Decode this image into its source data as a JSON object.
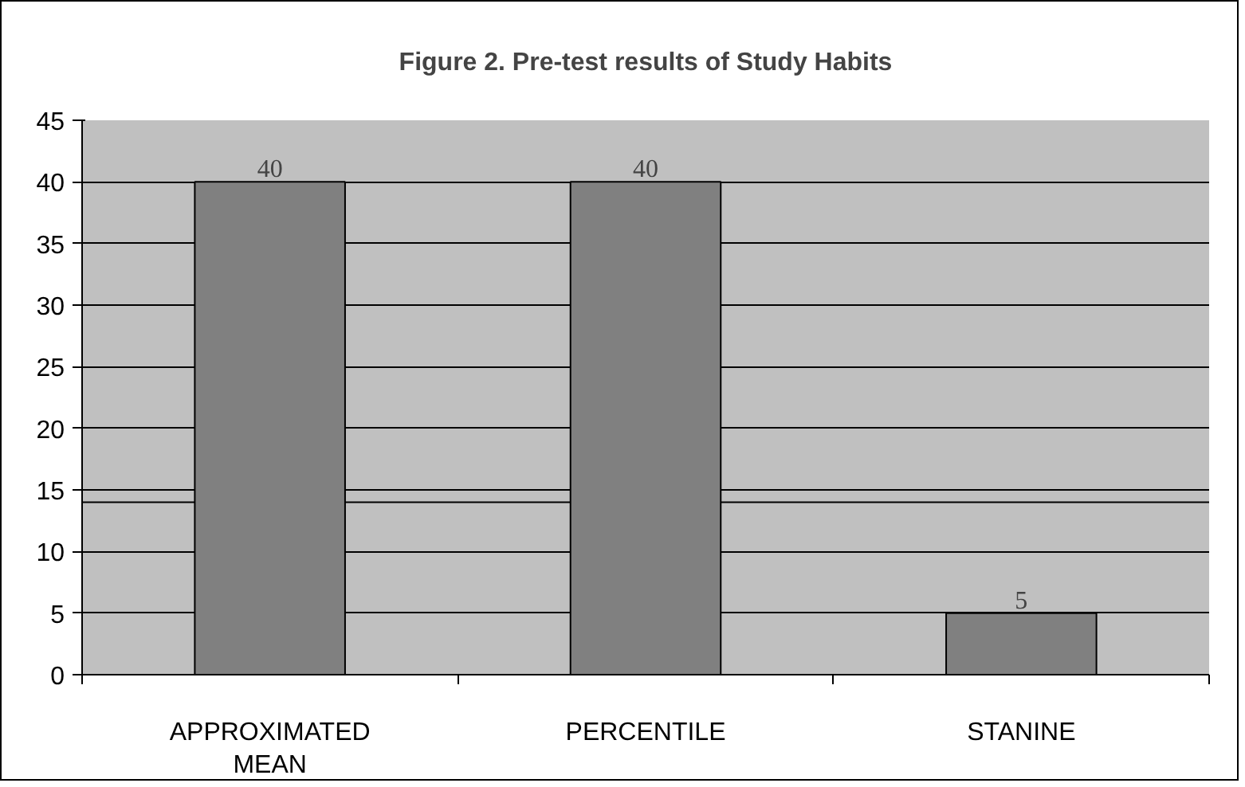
{
  "chart_data": {
    "type": "bar",
    "title": "Figure 2. Pre-test results of Study Habits",
    "categories": [
      "APPROXIMATED MEAN",
      "PERCENTILE",
      "STANINE"
    ],
    "values": [
      40,
      40,
      5
    ],
    "color": "#808080",
    "ylim": [
      0,
      45
    ],
    "yticks": [
      0,
      5,
      10,
      15,
      20,
      25,
      30,
      35,
      40,
      45
    ],
    "grid": "y",
    "ref_lines": [
      {
        "axis": "y",
        "value": 14,
        "color": "#000000"
      }
    ],
    "data_labels": true
  }
}
